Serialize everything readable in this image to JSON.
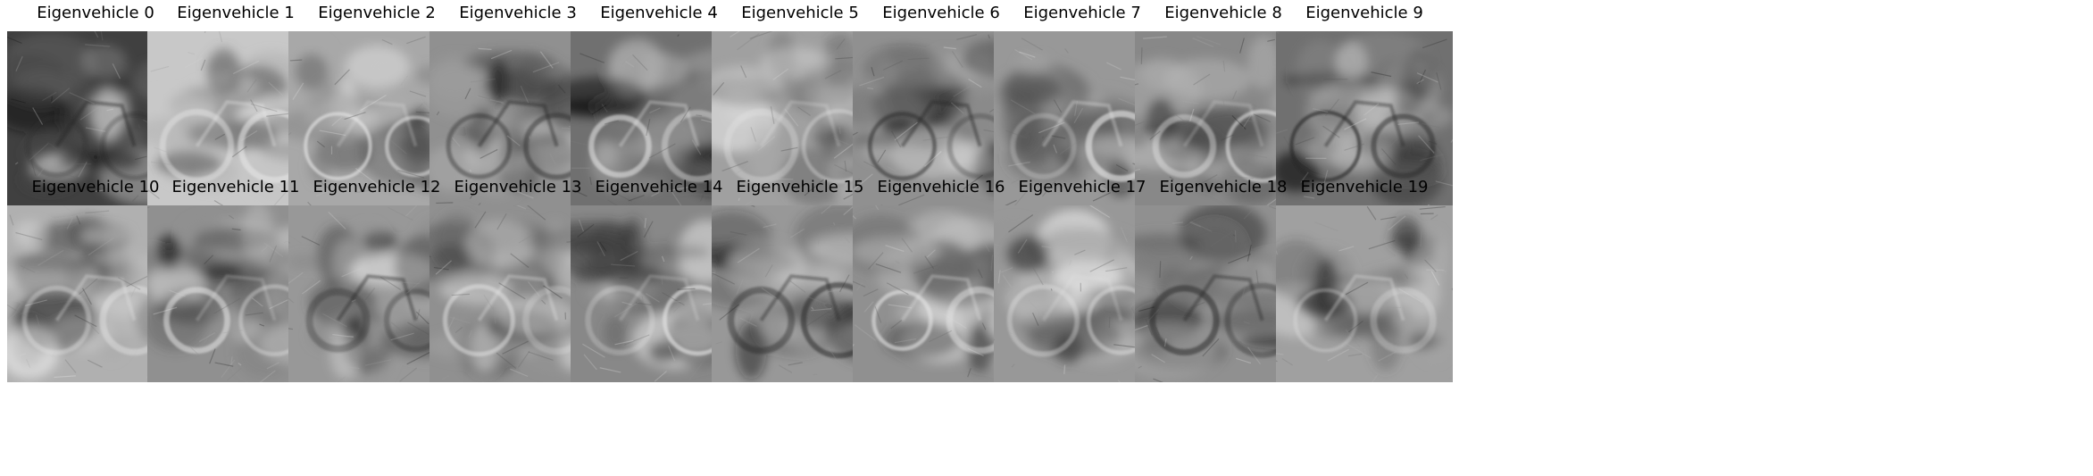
{
  "figure": {
    "panels": [
      {
        "title": "Eigenvehicle 0",
        "image_description": "grayscale eigenimage, bright blurred car/bicycle silhouette on dark background"
      },
      {
        "title": "Eigenvehicle 1",
        "image_description": "grayscale eigenimage, bright rounded vehicle body with dark bottom band"
      },
      {
        "title": "Eigenvehicle 2",
        "image_description": "grayscale eigenimage, dark top band and bright lower half"
      },
      {
        "title": "Eigenvehicle 3",
        "image_description": "grayscale eigenimage, dark central vehicle blob"
      },
      {
        "title": "Eigenvehicle 4",
        "image_description": "grayscale eigenimage, dark horizontal body with black bottom band"
      },
      {
        "title": "Eigenvehicle 5",
        "image_description": "grayscale eigenimage, dark top body over light wheels"
      },
      {
        "title": "Eigenvehicle 6",
        "image_description": "grayscale eigenimage, dark diagonal streak"
      },
      {
        "title": "Eigenvehicle 7",
        "image_description": "grayscale eigenimage, faint bicycle with two wheels"
      },
      {
        "title": "Eigenvehicle 8",
        "image_description": "grayscale eigenimage, dark motorcycle shapes"
      },
      {
        "title": "Eigenvehicle 9",
        "image_description": "grayscale eigenimage, dark vehicle with light right wheel"
      },
      {
        "title": "Eigenvehicle 10",
        "image_description": "grayscale eigenimage, clear dark bicycle outline"
      },
      {
        "title": "Eigenvehicle 11",
        "image_description": "grayscale eigenimage, motorcycle with dark wheels"
      },
      {
        "title": "Eigenvehicle 12",
        "image_description": "grayscale eigenimage, dark motorcycle blur"
      },
      {
        "title": "Eigenvehicle 13",
        "image_description": "grayscale eigenimage, dark rider shape over wheels"
      },
      {
        "title": "Eigenvehicle 14",
        "image_description": "grayscale eigenimage, mottled dark motorcycle"
      },
      {
        "title": "Eigenvehicle 15",
        "image_description": "grayscale eigenimage, motorcycle with light wheels"
      },
      {
        "title": "Eigenvehicle 16",
        "image_description": "grayscale eigenimage, motorcycle dark center, light wheels"
      },
      {
        "title": "Eigenvehicle 17",
        "image_description": "grayscale eigenimage, bicycle with defined wheels"
      },
      {
        "title": "Eigenvehicle 18",
        "image_description": "grayscale eigenimage, dark noisy motorcycle"
      },
      {
        "title": "Eigenvehicle 19",
        "image_description": "grayscale eigenimage, noisy bicycle texture"
      }
    ]
  }
}
